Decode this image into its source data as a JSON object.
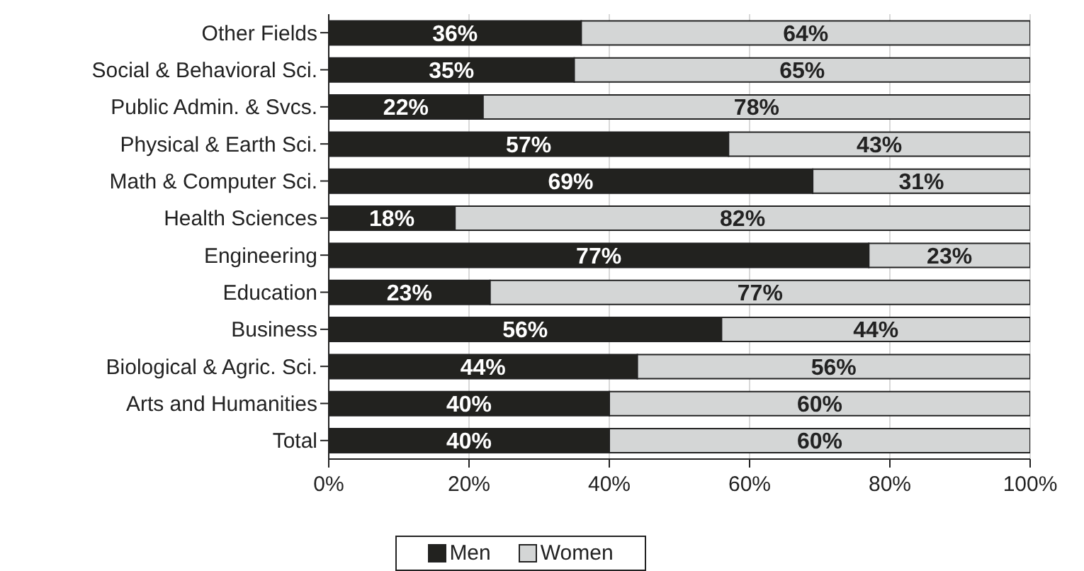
{
  "chart_data": {
    "type": "bar",
    "orientation": "horizontal",
    "stacked": true,
    "categories": [
      "Other Fields",
      "Social & Behavioral Sci.",
      "Public Admin. & Svcs.",
      "Physical & Earth Sci.",
      "Math & Computer Sci.",
      "Health Sciences",
      "Engineering",
      "Education",
      "Business",
      "Biological & Agric. Sci.",
      "Arts and Humanities",
      "Total"
    ],
    "series": [
      {
        "name": "Men",
        "color": "#22221f",
        "values": [
          36,
          35,
          22,
          57,
          69,
          18,
          77,
          23,
          56,
          44,
          40,
          40
        ],
        "value_labels": [
          "36%",
          "35%",
          "22%",
          "57%",
          "69%",
          "18%",
          "77%",
          "23%",
          "56%",
          "44%",
          "40%",
          "40%"
        ]
      },
      {
        "name": "Women",
        "color": "#d4d6d6",
        "values": [
          64,
          65,
          78,
          43,
          31,
          82,
          23,
          77,
          44,
          56,
          60,
          60
        ],
        "value_labels": [
          "64%",
          "65%",
          "78%",
          "43%",
          "31%",
          "82%",
          "23%",
          "77%",
          "44%",
          "56%",
          "60%",
          "60%"
        ]
      }
    ],
    "xlim": [
      0,
      100
    ],
    "xticks": [
      {
        "value": 0,
        "label": "0%"
      },
      {
        "value": 20,
        "label": "20%"
      },
      {
        "value": 40,
        "label": "40%"
      },
      {
        "value": 60,
        "label": "60%"
      },
      {
        "value": 80,
        "label": "80%"
      },
      {
        "value": 100,
        "label": "100%"
      }
    ],
    "grid": "x",
    "legend": "bottom"
  }
}
